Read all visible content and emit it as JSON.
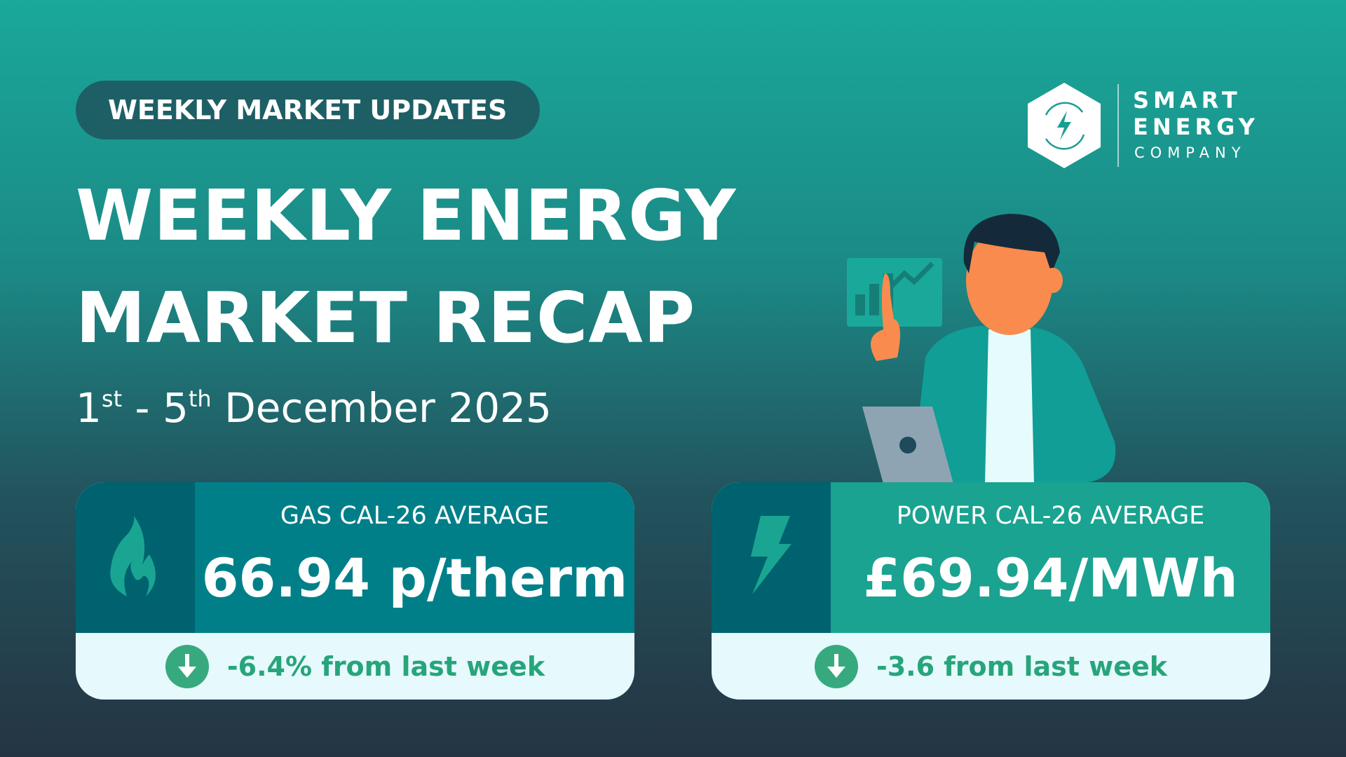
{
  "header": {
    "badge": "WEEKLY MARKET UPDATES",
    "title_line1": "WEEKLY ENERGY",
    "title_line2": "MARKET RECAP",
    "date": {
      "start_day": "1",
      "start_suffix": "st",
      "separator": " - ",
      "end_day": "5",
      "end_suffix": "th",
      "month_year": " December 2025"
    }
  },
  "logo": {
    "line1": "SMART",
    "line2": "ENERGY",
    "line3": "COMPANY",
    "icon": "hexagon-lightning-cycle-icon"
  },
  "cards": [
    {
      "icon": "flame-icon",
      "label": "GAS CAL-26 AVERAGE",
      "value": "66.94 p/therm",
      "change": "-6.4% from last week",
      "change_icon": "arrow-down-icon",
      "color": "#007f89"
    },
    {
      "icon": "lightning-icon",
      "label": "POWER CAL-26 AVERAGE",
      "value": "£69.94/MWh",
      "change": "-3.6 from last week",
      "change_icon": "arrow-down-icon",
      "color": "#1aa390"
    }
  ],
  "colors": {
    "accent_green": "#36aa7e",
    "icon_panel": "#00626f",
    "footer_bg": "#e6f9fd"
  }
}
